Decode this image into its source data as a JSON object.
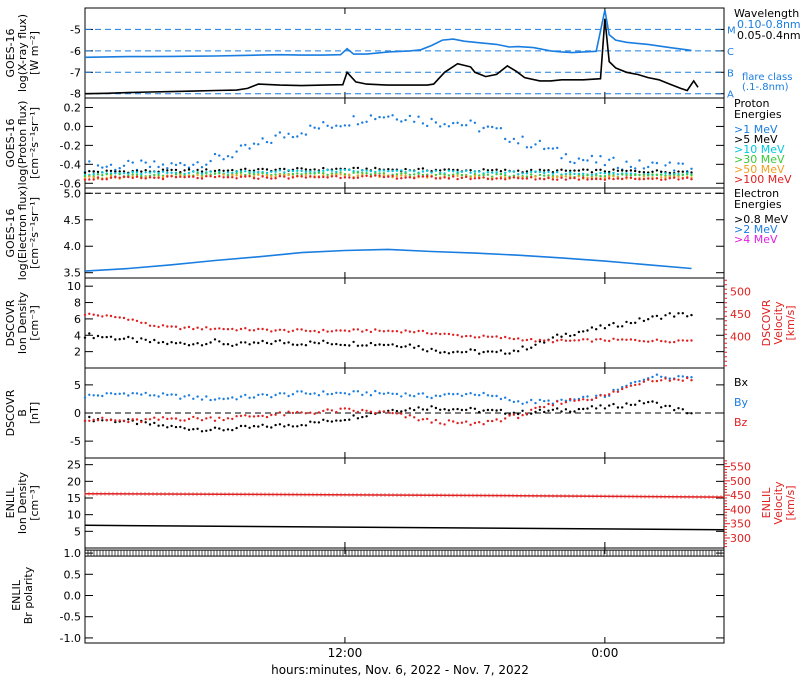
{
  "xaxis": {
    "title": "hours:minutes, Nov.  6, 2022 - Nov.  7, 2022",
    "ticks": [
      {
        "label": "12:00",
        "h": 12
      },
      {
        "label": "0:00",
        "h": 24
      }
    ],
    "range_hours": [
      0,
      29.5
    ]
  },
  "colors": {
    "black": "#000000",
    "blue": "#1a7de0",
    "cyan": "#00c8e0",
    "green": "#3cc83c",
    "orange": "#f0a020",
    "red": "#e02020",
    "magenta": "#e020e0"
  },
  "chart_data": [
    {
      "id": "xray",
      "type": "line",
      "ylabel": [
        "GOES-16",
        "log(X-ray flux)",
        "[W m⁻²]"
      ],
      "ylim": [
        -8.2,
        -4.0
      ],
      "yticks": [
        -8,
        -7,
        -6,
        -5
      ],
      "y_log": true,
      "reference_lines": [
        {
          "y": -5,
          "label": "M"
        },
        {
          "y": -6,
          "label": "C"
        },
        {
          "y": -7,
          "label": "B"
        },
        {
          "y": -8,
          "label": "A"
        }
      ],
      "legend_title": "Wavelength",
      "legend": [
        {
          "name": "0.10-0.8nm",
          "color": "blue"
        },
        {
          "name": "0.05-0.4nm",
          "color": "black"
        }
      ],
      "legend_footer": [
        "flare class",
        "(.1-.8nm)"
      ],
      "series": [
        {
          "name": "0.10-0.8nm",
          "color": "blue",
          "x": [
            0,
            1,
            2,
            3,
            4,
            5,
            6,
            7,
            8,
            9,
            10,
            11,
            11.8,
            12.1,
            12.4,
            13,
            14,
            15,
            15.5,
            16,
            16.5,
            17,
            17.5,
            18,
            19,
            19.6,
            20,
            20.7,
            21.5,
            22,
            22.5,
            23,
            23.6,
            24,
            24.2,
            24.5,
            25,
            25.5,
            26,
            27,
            28
          ],
          "y": [
            -6.3,
            -6.28,
            -6.27,
            -6.27,
            -6.26,
            -6.25,
            -6.24,
            -6.22,
            -6.2,
            -6.18,
            -6.2,
            -6.2,
            -6.18,
            -5.9,
            -6.15,
            -6.15,
            -6.05,
            -6.0,
            -5.95,
            -5.75,
            -5.5,
            -5.45,
            -5.55,
            -5.6,
            -5.7,
            -5.82,
            -5.8,
            -5.85,
            -6.0,
            -6.05,
            -6.08,
            -6.05,
            -6.02,
            -4.1,
            -5.25,
            -5.5,
            -5.6,
            -5.65,
            -5.7,
            -5.85,
            -5.98
          ]
        },
        {
          "name": "0.05-0.4nm",
          "color": "black",
          "x": [
            0,
            1,
            2,
            3,
            4,
            5,
            6,
            7,
            7.5,
            8,
            9,
            10,
            11,
            11.9,
            12.1,
            12.5,
            13,
            14,
            15,
            15.8,
            16.1,
            16.6,
            17.2,
            17.8,
            18,
            18.5,
            19,
            19.5,
            19.9,
            20.3,
            21,
            21.5,
            22,
            23,
            23.8,
            24,
            24.2,
            24.5,
            25,
            25.5,
            26,
            26.5,
            27,
            27.5,
            27.8,
            28.1,
            28.3
          ],
          "y": [
            -8.0,
            -7.98,
            -7.95,
            -7.92,
            -7.9,
            -7.88,
            -7.85,
            -7.83,
            -7.75,
            -7.55,
            -7.6,
            -7.62,
            -7.6,
            -7.58,
            -7.0,
            -7.45,
            -7.55,
            -7.6,
            -7.6,
            -7.6,
            -7.55,
            -7.0,
            -6.6,
            -6.75,
            -7.0,
            -7.2,
            -7.1,
            -6.7,
            -6.95,
            -7.25,
            -7.4,
            -7.4,
            -7.35,
            -7.35,
            -7.3,
            -4.5,
            -6.5,
            -6.8,
            -7.0,
            -7.1,
            -7.25,
            -7.35,
            -7.55,
            -7.75,
            -7.85,
            -7.4,
            -7.7
          ]
        }
      ]
    },
    {
      "id": "proton",
      "type": "scatter",
      "ylabel": [
        "GOES-16",
        "log(Proton flux)",
        "[cm⁻²s⁻¹sr⁻¹]"
      ],
      "ylim": [
        -0.65,
        0.3
      ],
      "yticks": [
        0.2,
        0.0,
        -0.2,
        -0.4,
        -0.6
      ],
      "ytick_labels": [
        "0.2",
        "0.0",
        "-0.2",
        "-0.4",
        "-0.6"
      ],
      "legend_title": [
        "Proton",
        "Energies"
      ],
      "legend": [
        {
          "name": ">1 MeV",
          "color": "blue"
        },
        {
          "name": ">5 MeV",
          "color": "black"
        },
        {
          "name": ">10 MeV",
          "color": "cyan"
        },
        {
          "name": ">30 MeV",
          "color": "green"
        },
        {
          "name": ">50 MeV",
          "color": "orange"
        },
        {
          "name": ">100 MeV",
          "color": "red"
        }
      ],
      "series": [
        {
          "name": ">1 MeV",
          "color": "blue",
          "x": [
            0,
            4,
            6,
            8,
            9,
            10,
            11,
            12,
            13,
            14,
            15,
            16,
            17,
            18,
            19,
            20,
            21,
            22,
            23,
            24,
            25,
            26,
            27,
            28
          ],
          "y": [
            -0.42,
            -0.42,
            -0.35,
            -0.2,
            -0.1,
            -0.05,
            0.0,
            0.05,
            0.1,
            0.12,
            0.1,
            0.05,
            0.05,
            0.0,
            -0.05,
            -0.15,
            -0.2,
            -0.3,
            -0.35,
            -0.38,
            -0.4,
            -0.42,
            -0.42,
            -0.44
          ]
        },
        {
          "name": ">5 MeV",
          "color": "black",
          "x": [
            0,
            4,
            8,
            12,
            16,
            20,
            24,
            28
          ],
          "y": [
            -0.48,
            -0.47,
            -0.46,
            -0.45,
            -0.46,
            -0.47,
            -0.47,
            -0.48
          ]
        },
        {
          "name": ">10 MeV",
          "color": "cyan",
          "x": [
            0,
            4,
            8,
            12,
            16,
            20,
            24,
            28
          ],
          "y": [
            -0.5,
            -0.49,
            -0.48,
            -0.47,
            -0.48,
            -0.49,
            -0.5,
            -0.5
          ]
        },
        {
          "name": ">30 MeV",
          "color": "green",
          "x": [
            0,
            4,
            8,
            12,
            16,
            20,
            24,
            28
          ],
          "y": [
            -0.52,
            -0.51,
            -0.5,
            -0.5,
            -0.51,
            -0.52,
            -0.52,
            -0.52
          ]
        },
        {
          "name": ">50 MeV",
          "color": "orange",
          "x": [
            0,
            4,
            8,
            12,
            16,
            20,
            24,
            28
          ],
          "y": [
            -0.54,
            -0.53,
            -0.52,
            -0.52,
            -0.53,
            -0.54,
            -0.54,
            -0.54
          ]
        },
        {
          "name": ">100 MeV",
          "color": "red",
          "x": [
            0,
            4,
            8,
            12,
            16,
            20,
            24,
            28
          ],
          "y": [
            -0.55,
            -0.54,
            -0.54,
            -0.53,
            -0.54,
            -0.55,
            -0.55,
            -0.55
          ]
        }
      ]
    },
    {
      "id": "electron",
      "type": "line",
      "ylabel": [
        "GOES-16",
        "log(Electron flux)",
        "[cm⁻²s⁻¹sr⁻¹]"
      ],
      "ylim": [
        3.4,
        5.1
      ],
      "yticks": [
        3.5,
        4.0,
        4.5,
        5.0
      ],
      "ytick_labels": [
        "3.5",
        "4.0",
        "4.5",
        "5.0"
      ],
      "reference_lines": [
        {
          "y": 5.0
        }
      ],
      "legend_title": [
        "Electron",
        "Energies"
      ],
      "legend": [
        {
          "name": ">0.8 MeV",
          "color": "black"
        },
        {
          "name": ">2 MeV",
          "color": "blue"
        },
        {
          "name": ">4 MeV",
          "color": "magenta"
        }
      ],
      "series": [
        {
          "name": ">2 MeV",
          "color": "blue",
          "x": [
            0,
            2,
            4,
            6,
            8,
            10,
            12,
            14,
            16,
            18,
            20,
            22,
            24,
            26,
            28
          ],
          "y": [
            3.53,
            3.58,
            3.65,
            3.73,
            3.8,
            3.88,
            3.92,
            3.94,
            3.9,
            3.87,
            3.83,
            3.78,
            3.72,
            3.65,
            3.58
          ]
        }
      ]
    },
    {
      "id": "dscovr_density",
      "type": "scatter",
      "ylabel": [
        "DSCOVR",
        "Ion Density",
        "[cm⁻³]"
      ],
      "ylim": [
        0,
        11
      ],
      "yticks": [
        2,
        4,
        6,
        8,
        10
      ],
      "ylabel_right": [
        "DSCOVR",
        "Velocity",
        "[km/s]"
      ],
      "ylim_right": [
        330,
        530
      ],
      "yticks_right": [
        400,
        450,
        500
      ],
      "series": [
        {
          "name": "Ion Density",
          "color": "black",
          "axis": "left",
          "x": [
            0,
            1,
            2,
            3,
            4,
            5,
            6,
            7,
            8,
            9,
            10,
            11,
            12,
            13,
            14,
            15,
            16,
            17,
            18,
            19,
            20,
            21,
            22,
            23,
            24,
            25,
            26,
            27,
            28
          ],
          "y": [
            4.0,
            3.8,
            3.5,
            3.2,
            3.0,
            3.0,
            3.2,
            2.8,
            3.0,
            3.2,
            3.0,
            3.1,
            3.0,
            3.0,
            2.9,
            2.8,
            2.2,
            2.0,
            2.0,
            1.8,
            2.2,
            3.0,
            4.0,
            4.5,
            5.0,
            5.5,
            6.0,
            6.5,
            6.5
          ]
        },
        {
          "name": "Velocity",
          "color": "red",
          "axis": "right",
          "x": [
            0,
            1,
            2,
            3,
            4,
            5,
            6,
            7,
            8,
            9,
            10,
            11,
            12,
            13,
            14,
            15,
            16,
            17,
            18,
            19,
            20,
            21,
            22,
            23,
            24,
            25,
            26,
            27,
            28
          ],
          "y": [
            450,
            445,
            440,
            425,
            420,
            418,
            418,
            416,
            415,
            413,
            413,
            412,
            413,
            413,
            412,
            412,
            408,
            403,
            400,
            398,
            395,
            390,
            390,
            391,
            392,
            392,
            391,
            390,
            392
          ]
        }
      ]
    },
    {
      "id": "dscovr_b",
      "type": "scatter",
      "ylabel": [
        "DSCOVR",
        "B",
        "[nT]"
      ],
      "ylim": [
        -8,
        8
      ],
      "yticks": [
        -5,
        0,
        5
      ],
      "reference_lines": [
        {
          "y": 0
        }
      ],
      "legend": [
        {
          "name": "Bx",
          "color": "black"
        },
        {
          "name": "By",
          "color": "blue"
        },
        {
          "name": "Bz",
          "color": "red"
        }
      ],
      "series": [
        {
          "name": "Bx",
          "color": "black",
          "x": [
            0,
            2,
            4,
            6,
            8,
            10,
            12,
            14,
            16,
            18,
            20,
            22,
            24,
            26,
            28
          ],
          "y": [
            -1.0,
            -1.5,
            -2.5,
            -3.0,
            -2.5,
            -2.0,
            -1.0,
            0.5,
            1.0,
            0.5,
            0.0,
            0.5,
            1.0,
            2.0,
            0.0
          ]
        },
        {
          "name": "By",
          "color": "blue",
          "x": [
            0,
            2,
            4,
            6,
            8,
            10,
            12,
            14,
            16,
            18,
            20,
            22,
            24,
            26,
            28
          ],
          "y": [
            3.0,
            3.5,
            3.0,
            2.5,
            3.0,
            3.5,
            3.5,
            3.5,
            3.0,
            3.5,
            2.0,
            2.0,
            3.0,
            6.5,
            6.5
          ]
        },
        {
          "name": "Bz",
          "color": "red",
          "x": [
            0,
            2,
            4,
            6,
            8,
            10,
            12,
            14,
            16,
            18,
            20,
            22,
            24,
            26,
            28
          ],
          "y": [
            -1.0,
            -1.5,
            -1.0,
            -1.0,
            -0.5,
            0.0,
            0.5,
            0.0,
            -1.5,
            -2.0,
            -0.5,
            2.0,
            3.0,
            6.0,
            6.0
          ]
        }
      ]
    },
    {
      "id": "enlil_density",
      "type": "line",
      "ylabel": [
        "ENLIL",
        "Ion Density",
        "[cm⁻³]"
      ],
      "ylim": [
        0,
        27
      ],
      "yticks": [
        5,
        10,
        15,
        20,
        25
      ],
      "ylabel_right": [
        "ENLIL",
        "Velocity",
        "[km/s]"
      ],
      "ylim_right": [
        265,
        580
      ],
      "yticks_right": [
        300,
        350,
        400,
        450,
        500,
        550
      ],
      "series": [
        {
          "name": "Ion Density",
          "color": "black",
          "axis": "left",
          "x": [
            0,
            29.5
          ],
          "y": [
            6.8,
            5.5
          ]
        },
        {
          "name": "Velocity",
          "color": "red",
          "axis": "right",
          "x": [
            0,
            10,
            20,
            29.5
          ],
          "y": [
            455,
            452,
            448,
            443
          ]
        }
      ]
    },
    {
      "id": "enlil_polarity",
      "type": "line",
      "ylabel": [
        "ENLIL",
        "Br polarity"
      ],
      "ylim": [
        -1.12,
        1.12
      ],
      "yticks": [
        1.0,
        0.5,
        0.0,
        -0.5,
        -1.0
      ],
      "ytick_labels": [
        "1.0",
        "0.5",
        "0.0",
        "-0.5",
        "-1.0"
      ],
      "series": [
        {
          "name": "Br polarity",
          "color": "black",
          "x": [
            0,
            29.5
          ],
          "y": [
            1.0,
            1.0
          ]
        }
      ]
    }
  ]
}
